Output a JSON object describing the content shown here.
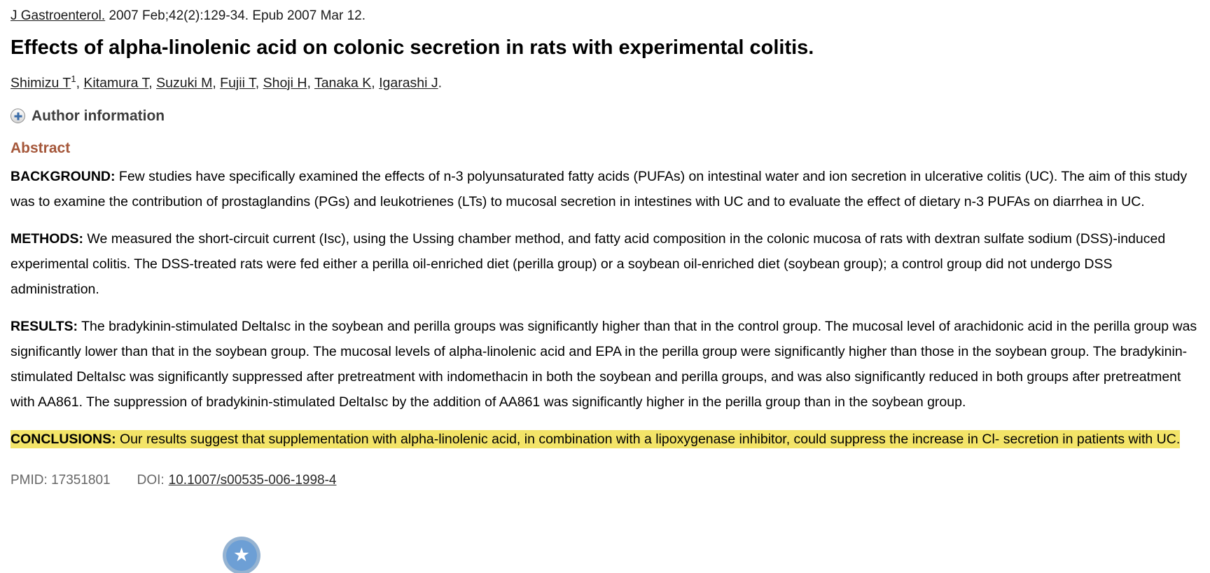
{
  "citation": {
    "journal_link": "J Gastroenterol.",
    "details": " 2007 Feb;42(2):129-34. Epub 2007 Mar 12."
  },
  "title": "Effects of alpha-linolenic acid on colonic secretion in rats with experimental colitis.",
  "authors": {
    "list": [
      {
        "name": "Shimizu T",
        "sup": "1"
      },
      {
        "name": "Kitamura T",
        "sup": ""
      },
      {
        "name": "Suzuki M",
        "sup": ""
      },
      {
        "name": "Fujii T",
        "sup": ""
      },
      {
        "name": "Shoji H",
        "sup": ""
      },
      {
        "name": "Tanaka K",
        "sup": ""
      },
      {
        "name": "Igarashi J",
        "sup": ""
      }
    ],
    "separator": ", ",
    "terminator": "."
  },
  "author_information": {
    "label": "Author information",
    "icon": "plus-expand-icon"
  },
  "abstract": {
    "heading": "Abstract",
    "sections": [
      {
        "label": "BACKGROUND:",
        "text": "Few studies have specifically examined the effects of n-3 polyunsaturated fatty acids (PUFAs) on intestinal water and ion secretion in ulcerative colitis (UC). The aim of this study was to examine the contribution of prostaglandins (PGs) and leukotrienes (LTs) to mucosal secretion in intestines with UC and to evaluate the effect of dietary n-3 PUFAs on diarrhea in UC.",
        "highlighted": false
      },
      {
        "label": "METHODS:",
        "text": "We measured the short-circuit current (Isc), using the Ussing chamber method, and fatty acid composition in the colonic mucosa of rats with dextran sulfate sodium (DSS)-induced experimental colitis. The DSS-treated rats were fed either a perilla oil-enriched diet (perilla group) or a soybean oil-enriched diet (soybean group); a control group did not undergo DSS administration.",
        "highlighted": false
      },
      {
        "label": "RESULTS:",
        "text": "The bradykinin-stimulated DeltaIsc in the soybean and perilla groups was significantly higher than that in the control group. The mucosal level of arachidonic acid in the perilla group was significantly lower than that in the soybean group. The mucosal levels of alpha-linolenic acid and EPA in the perilla group were significantly higher than those in the soybean group. The bradykinin-stimulated DeltaIsc was significantly suppressed after pretreatment with indomethacin in both the soybean and perilla groups, and was also significantly reduced in both groups after pretreatment with AA861. The suppression of bradykinin-stimulated DeltaIsc by the addition of AA861 was significantly higher in the perilla group than in the soybean group.",
        "highlighted": false
      },
      {
        "label": "CONCLUSIONS:",
        "text": "Our results suggest that supplementation with alpha-linolenic acid, in combination with a lipoxygenase inhibitor, could suppress the increase in Cl- secretion in patients with UC.",
        "highlighted": true
      }
    ]
  },
  "footer": {
    "pmid_label": "PMID:",
    "pmid_value": "17351801",
    "doi_label": "DOI:",
    "doi_value": "10.1007/s00535-006-1998-4"
  },
  "star_badge": {
    "icon": "star-icon",
    "glyph": "★"
  },
  "colors": {
    "abstract_heading": "#A5573A",
    "conclusion_highlight": "#F3E468",
    "star_badge_fill": "#6D9FD5",
    "star_badge_ring": "#A3B9D0"
  }
}
